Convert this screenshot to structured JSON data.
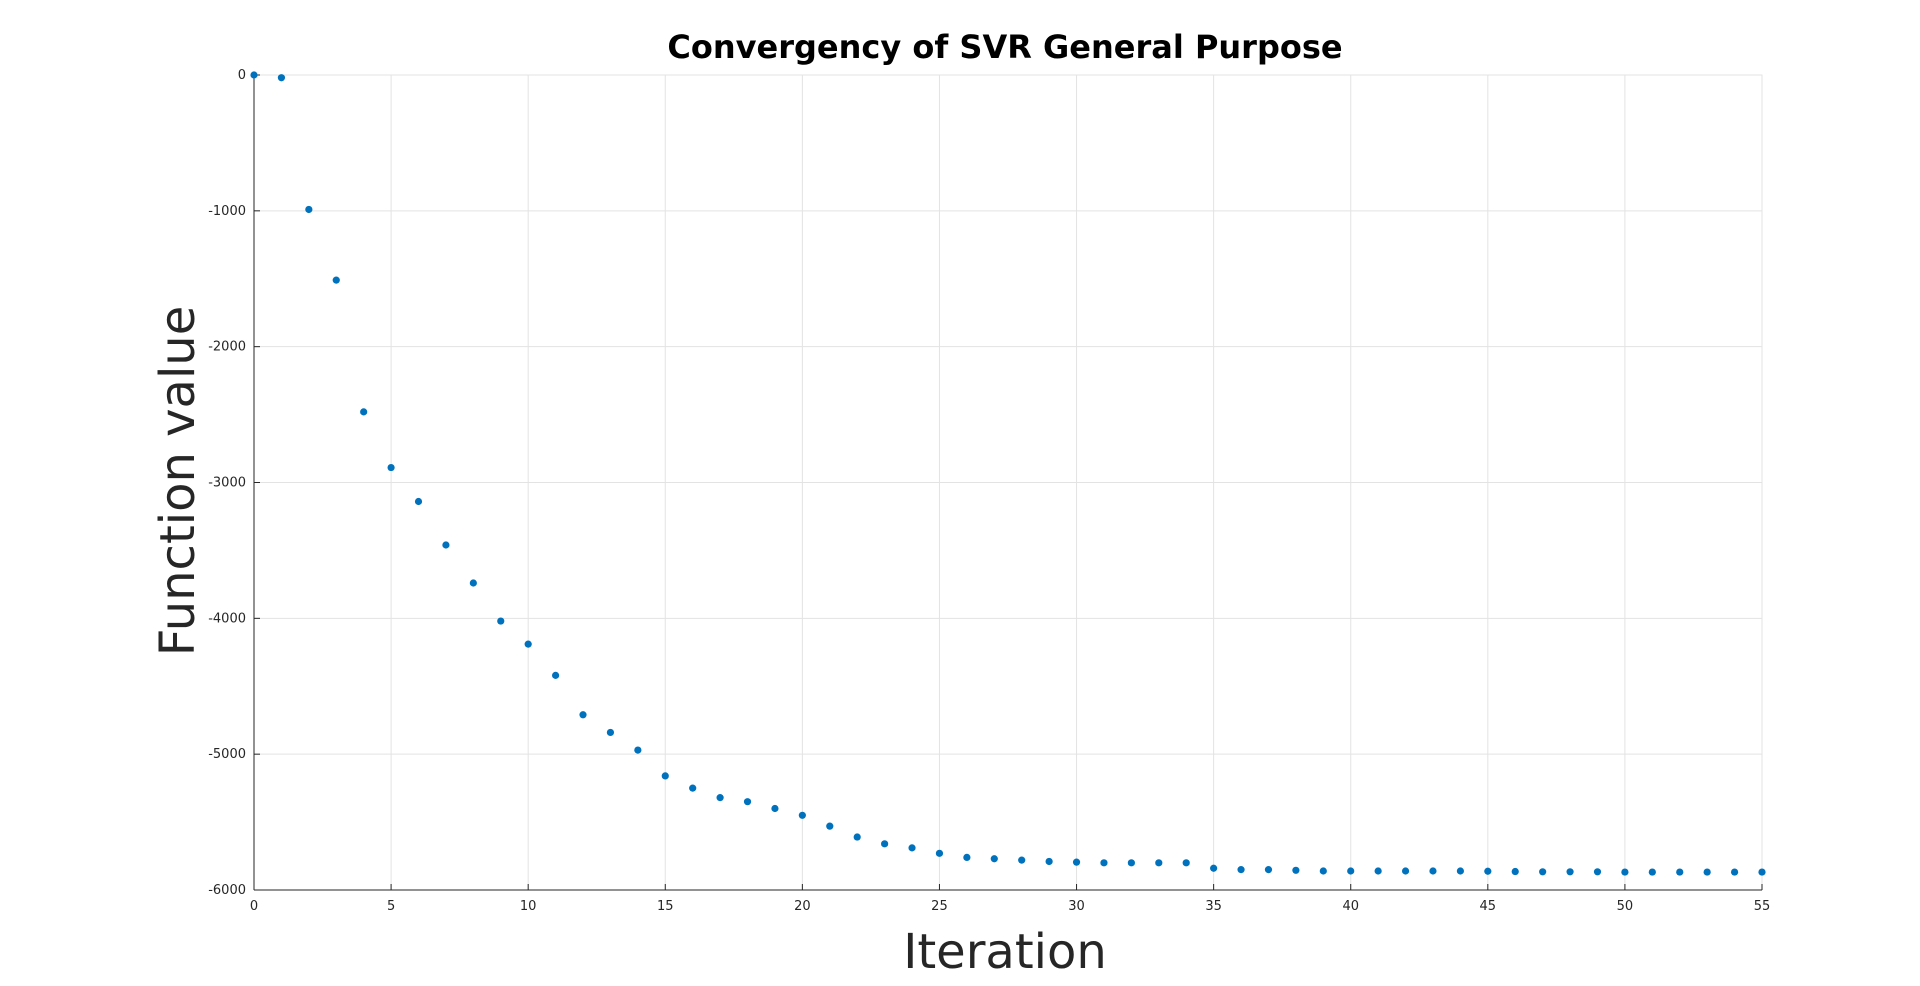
{
  "chart_data": {
    "type": "scatter",
    "title": "Convergency of SVR General Purpose",
    "xlabel": "Iteration",
    "ylabel": "Function value",
    "xlim": [
      0,
      55
    ],
    "ylim": [
      -6000,
      0
    ],
    "xticks": [
      0,
      5,
      10,
      15,
      20,
      25,
      30,
      35,
      40,
      45,
      50,
      55
    ],
    "yticks": [
      0,
      -1000,
      -2000,
      -3000,
      -4000,
      -5000,
      -6000
    ],
    "grid": true,
    "series": [
      {
        "color": "#0072bd",
        "x": [
          0,
          1,
          2,
          3,
          4,
          5,
          6,
          7,
          8,
          9,
          10,
          11,
          12,
          13,
          14,
          15,
          16,
          17,
          18,
          19,
          20,
          21,
          22,
          23,
          24,
          25,
          26,
          27,
          28,
          29,
          30,
          31,
          32,
          33,
          34,
          35,
          36,
          37,
          38,
          39,
          40,
          41,
          42,
          43,
          44,
          45,
          46,
          47,
          48,
          49,
          50,
          51,
          52,
          53,
          54,
          55
        ],
        "y": [
          0,
          -20,
          -990,
          -1510,
          -2480,
          -2890,
          -3140,
          -3460,
          -3740,
          -4020,
          -4190,
          -4420,
          -4710,
          -4840,
          -4970,
          -5160,
          -5250,
          -5320,
          -5350,
          -5400,
          -5450,
          -5530,
          -5610,
          -5660,
          -5690,
          -5730,
          -5760,
          -5770,
          -5780,
          -5790,
          -5795,
          -5800,
          -5800,
          -5800,
          -5800,
          -5840,
          -5850,
          -5850,
          -5855,
          -5860,
          -5860,
          -5860,
          -5860,
          -5860,
          -5860,
          -5862,
          -5864,
          -5866,
          -5866,
          -5866,
          -5868,
          -5868,
          -5868,
          -5868,
          -5868,
          -5868
        ]
      }
    ]
  }
}
